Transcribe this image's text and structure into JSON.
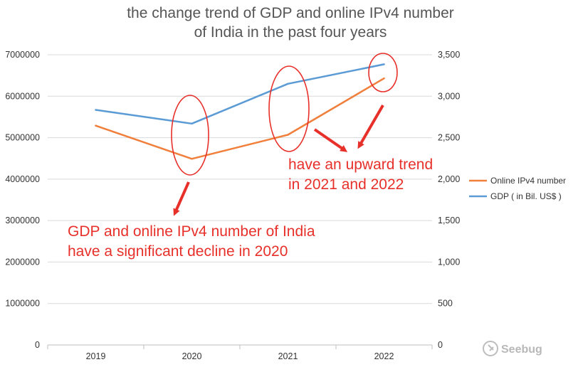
{
  "chart_data": {
    "type": "line",
    "title_lines": [
      "the change trend of GDP and online IPv4 number",
      "of India in the past four years"
    ],
    "xlabel": "",
    "ylabel": "",
    "categories": [
      "2019",
      "2020",
      "2021",
      "2022"
    ],
    "y_left": {
      "range": [
        0,
        7000000
      ],
      "ticks": [
        "0",
        "1000000",
        "2000000",
        "3000000",
        "4000000",
        "5000000",
        "6000000",
        "7000000"
      ]
    },
    "y_right": {
      "range": [
        0,
        3500
      ],
      "ticks": [
        "0",
        "500",
        "1,000",
        "1,500",
        "2,000",
        "2,500",
        "3,000",
        "3,500"
      ]
    },
    "series": [
      {
        "name": "Online IPv4 number",
        "axis": "left",
        "color": "#f07f3c",
        "values": [
          5290000,
          4490000,
          5070000,
          6430000
        ]
      },
      {
        "name": "GDP (  in Bil. US$ )",
        "axis": "right",
        "color": "#5b9bd5",
        "values": [
          2835,
          2670,
          3150,
          3385
        ]
      }
    ],
    "grid": true,
    "legend_position": "right",
    "annotations": [
      {
        "lines": [
          "have an upward trend",
          "in 2021 and 2022"
        ],
        "color": "#e8302a"
      },
      {
        "lines": [
          "GDP and online IPv4 number of India",
          "have a significant decline in 2020"
        ],
        "color": "#e8302a"
      }
    ]
  },
  "watermark": {
    "text": "Seebug",
    "icon": "seebug-logo-icon"
  }
}
